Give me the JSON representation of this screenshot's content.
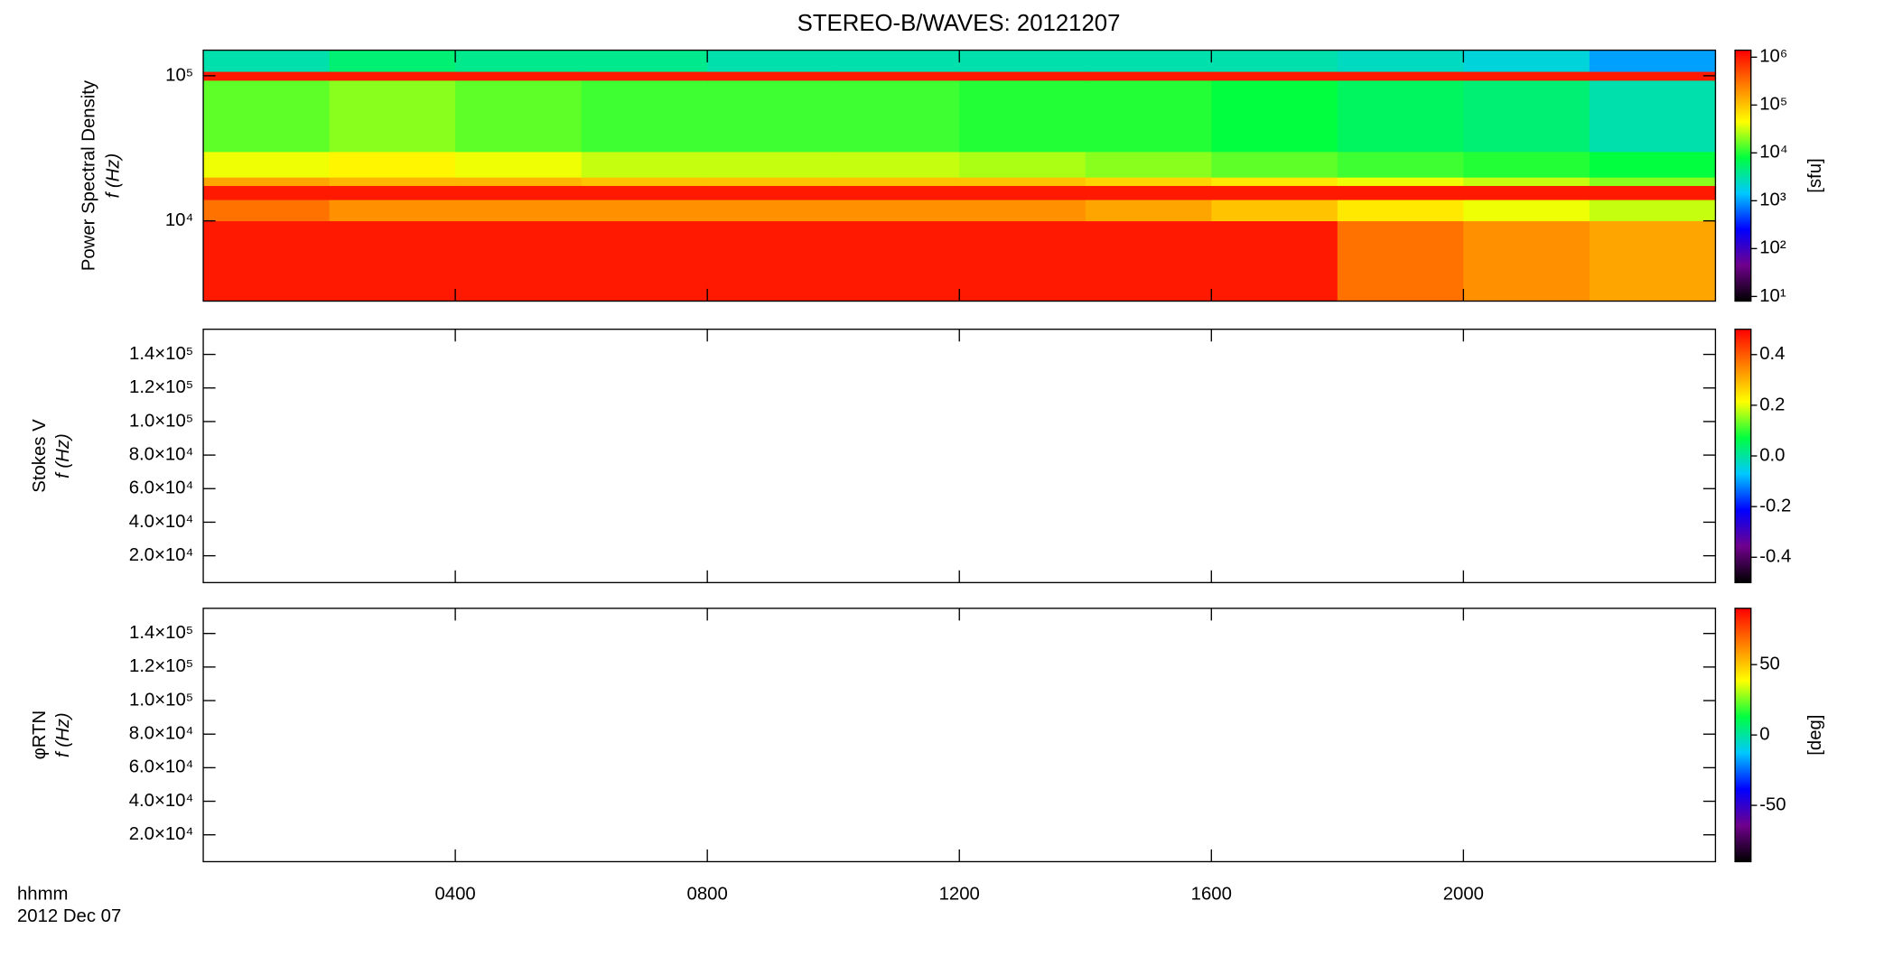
{
  "chart_data": [
    {
      "type": "heatmap",
      "title": "STEREO-B/WAVES: 20121207",
      "ylabel": [
        "Power Spectral Density",
        "f (Hz)"
      ],
      "ylog": true,
      "ylim": [
        2800,
        150000
      ],
      "yticks": [
        {
          "value": 10000,
          "label": "10⁴"
        },
        {
          "value": 100000,
          "label": "10⁵"
        }
      ],
      "x_bins": [
        0,
        2,
        4,
        6,
        8,
        10,
        12,
        14,
        16,
        18,
        20,
        22,
        24
      ],
      "y_bins": [
        2800,
        10000,
        14000,
        17500,
        20000,
        30000,
        93000,
        107000,
        150000
      ],
      "values": [
        [
          1000000,
          1000000,
          1000000,
          1000000,
          1000000,
          1000000,
          1000000,
          1000000,
          1000000,
          300000,
          200000,
          150000
        ],
        [
          300000,
          200000,
          200000,
          200000,
          200000,
          200000,
          200000,
          150000,
          100000,
          60000,
          40000,
          30000
        ],
        [
          1000000,
          1000000,
          1000000,
          1000000,
          1000000,
          1000000,
          1000000,
          1000000,
          1000000,
          1000000,
          1000000,
          1000000
        ],
        [
          150000,
          120000,
          120000,
          100000,
          100000,
          100000,
          100000,
          80000,
          60000,
          40000,
          30000,
          20000
        ],
        [
          40000,
          50000,
          40000,
          30000,
          30000,
          30000,
          25000,
          20000,
          15000,
          12000,
          10000,
          8000
        ],
        [
          15000,
          20000,
          15000,
          12000,
          12000,
          12000,
          10000,
          10000,
          8000,
          6000,
          5000,
          3000
        ],
        [
          1000000,
          1000000,
          1000000,
          1000000,
          1000000,
          1000000,
          1000000,
          1000000,
          1000000,
          1000000,
          1000000,
          1000000
        ],
        [
          3000,
          5000,
          4000,
          4000,
          3000,
          3000,
          3000,
          3000,
          3000,
          2500,
          2000,
          1000
        ]
      ],
      "zlog": true,
      "zlim": [
        8,
        1400000
      ],
      "zticks": [
        {
          "value": 10,
          "label": "10¹"
        },
        {
          "value": 100,
          "label": "10²"
        },
        {
          "value": 1000,
          "label": "10³"
        },
        {
          "value": 10000,
          "label": "10⁴"
        },
        {
          "value": 100000,
          "label": "10⁵"
        },
        {
          "value": 1000000,
          "label": "10⁶"
        }
      ],
      "zlabel": "[sfu]",
      "colors": [
        "#000000",
        "#70008c",
        "#0000ff",
        "#00c8ff",
        "#00ff40",
        "#ffff00",
        "#ff8000",
        "#ff0000"
      ]
    },
    {
      "type": "heatmap",
      "ylabel": [
        "Stokes V",
        "f (Hz)"
      ],
      "ylog": false,
      "ylim": [
        4000,
        155000
      ],
      "yticks": [
        {
          "value": 20000,
          "label": "2.0×10⁴"
        },
        {
          "value": 40000,
          "label": "4.0×10⁴"
        },
        {
          "value": 60000,
          "label": "6.0×10⁴"
        },
        {
          "value": 80000,
          "label": "8.0×10⁴"
        },
        {
          "value": 100000,
          "label": "1.0×10⁵"
        },
        {
          "value": 120000,
          "label": "1.2×10⁵"
        },
        {
          "value": 140000,
          "label": "1.4×10⁵"
        }
      ],
      "zlog": false,
      "zlim": [
        -0.5,
        0.5
      ],
      "zticks": [
        -0.4,
        -0.2,
        {
          "value": 0,
          "label": "0.0"
        },
        0.2,
        0.4
      ],
      "colors": [
        "#000000",
        "#70008c",
        "#0000ff",
        "#00c8ff",
        "#00ff40",
        "#ffff00",
        "#ff8000",
        "#ff0000"
      ]
    },
    {
      "type": "heatmap",
      "ylabel": [
        "φRTN",
        "f (Hz)"
      ],
      "ylog": false,
      "ylim": [
        4000,
        155000
      ],
      "yticks": [
        {
          "value": 20000,
          "label": "2.0×10⁴"
        },
        {
          "value": 40000,
          "label": "4.0×10⁴"
        },
        {
          "value": 60000,
          "label": "6.0×10⁴"
        },
        {
          "value": 80000,
          "label": "8.0×10⁴"
        },
        {
          "value": 100000,
          "label": "1.0×10⁵"
        },
        {
          "value": 120000,
          "label": "1.2×10⁵"
        },
        {
          "value": 140000,
          "label": "1.4×10⁵"
        }
      ],
      "zlog": false,
      "zlim": [
        -90,
        90
      ],
      "zticks": [
        -50,
        0,
        50
      ],
      "zlabel": "[deg]",
      "colors": [
        "#000000",
        "#70008c",
        "#0000ff",
        "#00c8ff",
        "#00ff40",
        "#ffff00",
        "#ff8000",
        "#ff0000"
      ],
      "xlim": [
        0,
        24
      ],
      "xticks": [
        {
          "value": 4,
          "label": "0400"
        },
        {
          "value": 8,
          "label": "0800"
        },
        {
          "value": 12,
          "label": "1200"
        },
        {
          "value": 16,
          "label": "1600"
        },
        {
          "value": 20,
          "label": "2000"
        }
      ],
      "xlabel": [
        "hhmm",
        "2012 Dec 07"
      ]
    }
  ]
}
